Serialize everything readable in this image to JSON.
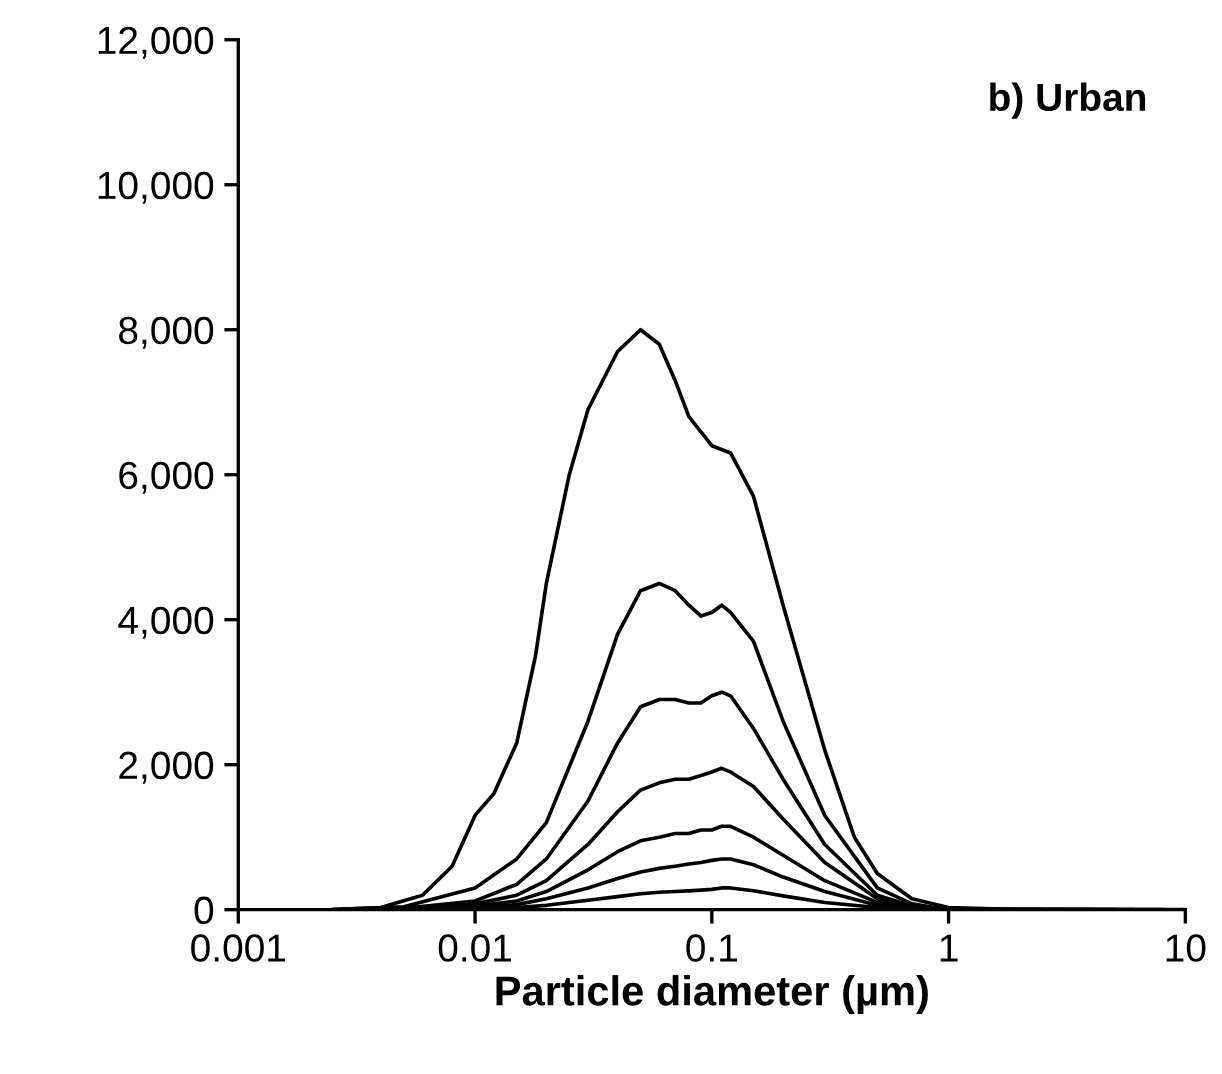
{
  "chart_data": {
    "type": "line",
    "xlabel": "Particle diameter (µm)",
    "annotations": [
      "b) Urban"
    ],
    "log": "x",
    "grid": false,
    "marker": "none",
    "line_style": "solid",
    "series": [
      {
        "color": "#000000",
        "x": [
          0.0025,
          0.004,
          0.006,
          0.008,
          0.01,
          0.012,
          0.015,
          0.018,
          0.02,
          0.025,
          0.03,
          0.04,
          0.05,
          0.06,
          0.07,
          0.08,
          0.1,
          0.12,
          0.15,
          0.2,
          0.3,
          0.4,
          0.5,
          0.7,
          1,
          2,
          10
        ],
        "values": [
          0,
          30,
          200,
          600,
          1300,
          1600,
          2300,
          3500,
          4500,
          6000,
          6900,
          7700,
          8000,
          7800,
          7300,
          6800,
          6400,
          6300,
          5700,
          4200,
          2200,
          1000,
          500,
          150,
          30,
          0,
          0
        ]
      },
      {
        "color": "#000000",
        "x": [
          0.0025,
          0.005,
          0.01,
          0.015,
          0.02,
          0.03,
          0.04,
          0.05,
          0.06,
          0.07,
          0.08,
          0.09,
          0.1,
          0.11,
          0.12,
          0.15,
          0.2,
          0.3,
          0.5,
          0.7,
          1,
          2,
          8
        ],
        "values": [
          0,
          40,
          300,
          700,
          1200,
          2600,
          3800,
          4400,
          4500,
          4400,
          4200,
          4050,
          4100,
          4200,
          4100,
          3700,
          2600,
          1300,
          300,
          80,
          0,
          0,
          0
        ]
      },
      {
        "color": "#000000",
        "x": [
          0.003,
          0.005,
          0.01,
          0.015,
          0.02,
          0.03,
          0.04,
          0.05,
          0.06,
          0.07,
          0.08,
          0.09,
          0.1,
          0.11,
          0.12,
          0.15,
          0.2,
          0.3,
          0.5,
          0.7,
          1,
          2,
          6
        ],
        "values": [
          0,
          20,
          120,
          350,
          700,
          1500,
          2300,
          2800,
          2900,
          2900,
          2850,
          2850,
          2950,
          3000,
          2950,
          2500,
          1800,
          900,
          200,
          50,
          0,
          0,
          0
        ]
      },
      {
        "color": "#000000",
        "x": [
          0.0035,
          0.005,
          0.01,
          0.015,
          0.02,
          0.03,
          0.04,
          0.05,
          0.06,
          0.07,
          0.08,
          0.09,
          0.1,
          0.11,
          0.12,
          0.15,
          0.2,
          0.3,
          0.5,
          0.7,
          1,
          2,
          5
        ],
        "values": [
          0,
          20,
          80,
          200,
          400,
          900,
          1350,
          1650,
          1750,
          1800,
          1800,
          1850,
          1900,
          1950,
          1900,
          1700,
          1250,
          650,
          150,
          30,
          0,
          0,
          0
        ]
      },
      {
        "color": "#000000",
        "x": [
          0.004,
          0.006,
          0.01,
          0.015,
          0.02,
          0.03,
          0.04,
          0.05,
          0.06,
          0.07,
          0.08,
          0.09,
          0.1,
          0.11,
          0.12,
          0.15,
          0.2,
          0.3,
          0.5,
          0.7,
          1,
          2,
          4
        ],
        "values": [
          0,
          10,
          50,
          120,
          250,
          550,
          800,
          950,
          1000,
          1050,
          1050,
          1100,
          1100,
          1150,
          1150,
          1000,
          750,
          400,
          100,
          20,
          0,
          0,
          0
        ]
      },
      {
        "color": "#000000",
        "x": [
          0.0045,
          0.006,
          0.01,
          0.015,
          0.02,
          0.03,
          0.04,
          0.05,
          0.06,
          0.07,
          0.08,
          0.09,
          0.1,
          0.11,
          0.12,
          0.15,
          0.2,
          0.3,
          0.5,
          0.7,
          1,
          2,
          3
        ],
        "values": [
          0,
          0,
          30,
          70,
          150,
          300,
          430,
          520,
          570,
          600,
          630,
          650,
          680,
          700,
          700,
          620,
          450,
          250,
          60,
          10,
          0,
          0,
          0
        ]
      },
      {
        "color": "#000000",
        "x": [
          0.005,
          0.007,
          0.01,
          0.015,
          0.02,
          0.03,
          0.04,
          0.05,
          0.06,
          0.07,
          0.08,
          0.09,
          0.1,
          0.11,
          0.12,
          0.15,
          0.2,
          0.3,
          0.5,
          0.7,
          1,
          1.5,
          2.5
        ],
        "values": [
          0,
          0,
          10,
          30,
          60,
          130,
          180,
          220,
          240,
          250,
          260,
          270,
          280,
          300,
          300,
          260,
          190,
          100,
          30,
          0,
          0,
          0,
          0
        ]
      }
    ],
    "xlim": [
      0.001,
      10
    ],
    "xticks": [
      0.001,
      0.01,
      0.1,
      1,
      10
    ],
    "ylim": [
      0,
      12000
    ],
    "yticks": [
      {
        "value": 0,
        "label": "0"
      },
      {
        "value": 2000,
        "label": "2,000"
      },
      {
        "value": 4000,
        "label": "4,000"
      },
      {
        "value": 6000,
        "label": "6,000"
      },
      {
        "value": 8000,
        "label": "8,000"
      },
      {
        "value": 10000,
        "label": "10,000"
      },
      {
        "value": 12000,
        "label": "12,000"
      }
    ]
  }
}
